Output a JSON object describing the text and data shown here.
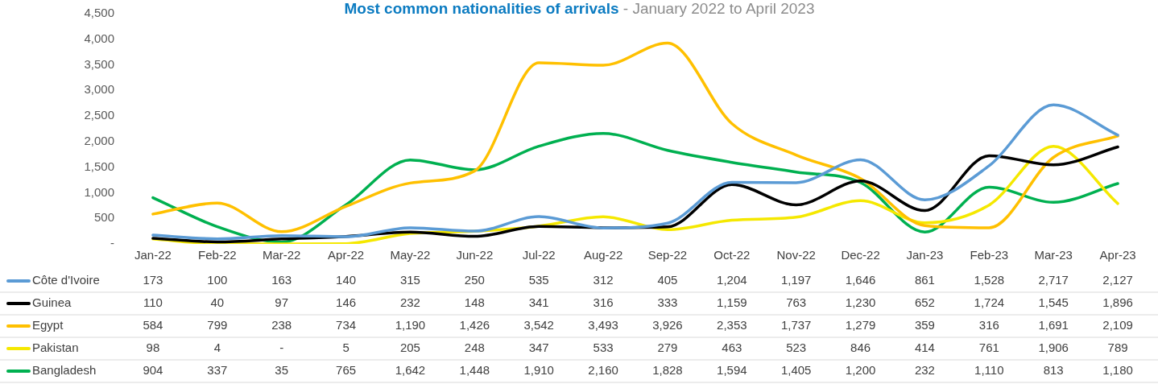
{
  "chart_data": {
    "type": "line",
    "title": "Most common nationalities of arrivals",
    "subtitle": "- January 2022 to April 2023",
    "categories": [
      "Jan-22",
      "Feb-22",
      "Mar-22",
      "Apr-22",
      "May-22",
      "Jun-22",
      "Jul-22",
      "Aug-22",
      "Sep-22",
      "Oct-22",
      "Nov-22",
      "Dec-22",
      "Jan-23",
      "Feb-23",
      "Mar-23",
      "Apr-23"
    ],
    "series": [
      {
        "name": "Côte d'Ivoire",
        "color": "#5b9bd5",
        "values": [
          173,
          100,
          163,
          140,
          315,
          250,
          535,
          312,
          405,
          1204,
          1197,
          1646,
          861,
          1528,
          2717,
          2127
        ],
        "value_labels": [
          "173",
          "100",
          "163",
          "140",
          "315",
          "250",
          "535",
          "312",
          "405",
          "1,204",
          "1,197",
          "1,646",
          "861",
          "1,528",
          "2,717",
          "2,127"
        ]
      },
      {
        "name": "Guinea",
        "color": "#000000",
        "values": [
          110,
          40,
          97,
          146,
          232,
          148,
          341,
          316,
          333,
          1159,
          763,
          1230,
          652,
          1724,
          1545,
          1896
        ],
        "value_labels": [
          "110",
          "40",
          "97",
          "146",
          "232",
          "148",
          "341",
          "316",
          "333",
          "1,159",
          "763",
          "1,230",
          "652",
          "1,724",
          "1,545",
          "1,896"
        ]
      },
      {
        "name": "Egypt",
        "color": "#ffc000",
        "values": [
          584,
          799,
          238,
          734,
          1190,
          1426,
          3542,
          3493,
          3926,
          2353,
          1737,
          1279,
          359,
          316,
          1691,
          2109
        ],
        "value_labels": [
          "584",
          "799",
          "238",
          "734",
          "1,190",
          "1,426",
          "3,542",
          "3,493",
          "3,926",
          "2,353",
          "1,737",
          "1,279",
          "359",
          "316",
          "1,691",
          "2,109"
        ]
      },
      {
        "name": "Pakistan",
        "color": "#f5e800",
        "values": [
          98,
          4,
          0,
          5,
          205,
          248,
          347,
          533,
          279,
          463,
          523,
          846,
          414,
          761,
          1906,
          789
        ],
        "value_labels": [
          "98",
          "4",
          "-",
          "5",
          "205",
          "248",
          "347",
          "533",
          "279",
          "463",
          "523",
          "846",
          "414",
          "761",
          "1,906",
          "789"
        ]
      },
      {
        "name": "Bangladesh",
        "color": "#00b050",
        "values": [
          904,
          337,
          35,
          765,
          1642,
          1448,
          1910,
          2160,
          1828,
          1594,
          1405,
          1200,
          232,
          1110,
          813,
          1180
        ],
        "value_labels": [
          "904",
          "337",
          "35",
          "765",
          "1,642",
          "1,448",
          "1,910",
          "2,160",
          "1,828",
          "1,594",
          "1,405",
          "1,200",
          "232",
          "1,110",
          "813",
          "1,180"
        ]
      }
    ],
    "ylim": [
      0,
      4500
    ],
    "yticks": [
      {
        "value": 0,
        "label": "-"
      },
      500,
      {
        "value": 1000,
        "label": "1,000"
      },
      {
        "value": 1500,
        "label": "1,500"
      },
      {
        "value": 2000,
        "label": "2,000"
      },
      {
        "value": 2500,
        "label": "2,500"
      },
      {
        "value": 3000,
        "label": "3,000"
      },
      {
        "value": 3500,
        "label": "3,500"
      },
      {
        "value": 4000,
        "label": "4,000"
      },
      {
        "value": 4500,
        "label": "4,500"
      }
    ],
    "grid": false,
    "legend": "bottom",
    "marker": "none",
    "line_style": "solid"
  }
}
